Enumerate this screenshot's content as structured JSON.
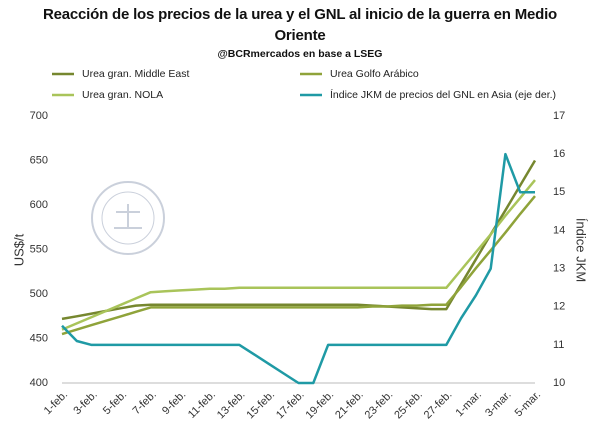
{
  "chart_data": {
    "type": "line",
    "title": "Reacción de los precios de la urea y el GNL al inicio de la guerra en Medio Oriente",
    "subtitle": "@BCRmercados en base a LSEG",
    "y_label": "US$/t",
    "y2_label": "Índice JKM",
    "categories": [
      "1-feb.",
      null,
      "3-feb.",
      null,
      "5-feb.",
      null,
      "7-feb.",
      null,
      "9-feb.",
      null,
      "11-feb.",
      null,
      "13-feb.",
      null,
      "15-feb.",
      null,
      "17-feb.",
      null,
      "19-feb.",
      null,
      "21-feb.",
      null,
      "23-feb.",
      null,
      "25-feb.",
      null,
      "27-feb.",
      null,
      "1-mar.",
      null,
      "3-mar.",
      null,
      "5-mar."
    ],
    "ylim": [
      400,
      700
    ],
    "yticks": [
      400,
      450,
      500,
      550,
      600,
      650,
      700
    ],
    "y2lim": [
      10,
      17
    ],
    "y2ticks": [
      10,
      11,
      12,
      13,
      14,
      15,
      16,
      17
    ],
    "series": [
      {
        "name": "Urea gran. Middle East",
        "color": "#76872f",
        "values": [
          472,
          475,
          478,
          481,
          484,
          487,
          488,
          488,
          488,
          488,
          488,
          488,
          488,
          488,
          488,
          488,
          488,
          488,
          488,
          488,
          488,
          487,
          486,
          485,
          484,
          483,
          483,
          511,
          539,
          567,
          594,
          622,
          650
        ]
      },
      {
        "name": "Urea Golfo Arábico",
        "color": "#8fa33a",
        "values": [
          455,
          460,
          465,
          470,
          475,
          480,
          485,
          485,
          485,
          485,
          485,
          485,
          485,
          485,
          485,
          485,
          485,
          485,
          485,
          485,
          485,
          486,
          486,
          487,
          487,
          488,
          488,
          508,
          529,
          549,
          569,
          590,
          610
        ]
      },
      {
        "name": "Urea gran. NOLA",
        "color": "#a9c45a",
        "values": [
          460,
          467,
          474,
          481,
          488,
          495,
          502,
          503,
          504,
          505,
          506,
          506,
          507,
          507,
          507,
          507,
          507,
          507,
          507,
          507,
          507,
          507,
          507,
          507,
          507,
          507,
          507,
          527,
          547,
          567,
          588,
          608,
          628
        ]
      },
      {
        "name": "Índice JKM de precios del GNL en Asia (eje der.)",
        "color": "#1f9aa5",
        "axis": "y2",
        "values": [
          11.5,
          11.1,
          11,
          11,
          11,
          11,
          11,
          11,
          11,
          11,
          11,
          11,
          11,
          10.75,
          10.5,
          10.25,
          10,
          10,
          11,
          11,
          11,
          11,
          11,
          11,
          11,
          11,
          11,
          11.7,
          12.3,
          13,
          16,
          15,
          15
        ]
      }
    ]
  }
}
